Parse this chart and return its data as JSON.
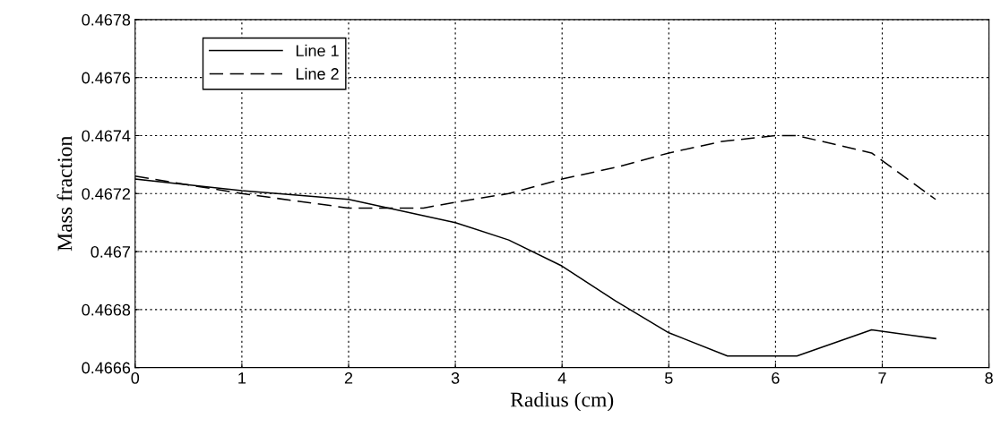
{
  "chart_data": {
    "type": "line",
    "xlabel": "Radius (cm)",
    "ylabel": "Mass fraction",
    "xlim": [
      0,
      8
    ],
    "xticks": [
      0,
      1,
      2,
      3,
      4,
      5,
      6,
      7,
      8
    ],
    "ylim": [
      0.4666,
      0.4678
    ],
    "yticks": [
      0.4666,
      0.4668,
      0.467,
      0.4672,
      0.4674,
      0.4676,
      0.4678
    ],
    "grid": true,
    "legend": "top left",
    "marker": "none",
    "series": [
      {
        "name": "Line 1",
        "color": "#000000",
        "line_style": "solid",
        "x": [
          0,
          1,
          2,
          3,
          3.5,
          4,
          4.5,
          5,
          5.55,
          6.2,
          6.9,
          7.5
        ],
        "values": [
          0.46725,
          0.46721,
          0.46718,
          0.4671,
          0.46704,
          0.46695,
          0.46683,
          0.46672,
          0.46664,
          0.46664,
          0.46673,
          0.4667
        ]
      },
      {
        "name": "Line 2",
        "color": "#000000",
        "line_style": "dashed",
        "x": [
          0,
          1,
          2,
          2.7,
          3,
          3.5,
          4,
          4.5,
          5,
          5.5,
          6,
          6.2,
          6.9,
          7.5
        ],
        "values": [
          0.46726,
          0.4672,
          0.46715,
          0.46715,
          0.46717,
          0.4672,
          0.46725,
          0.46729,
          0.46734,
          0.46738,
          0.4674,
          0.4674,
          0.46734,
          0.46718
        ]
      }
    ]
  }
}
